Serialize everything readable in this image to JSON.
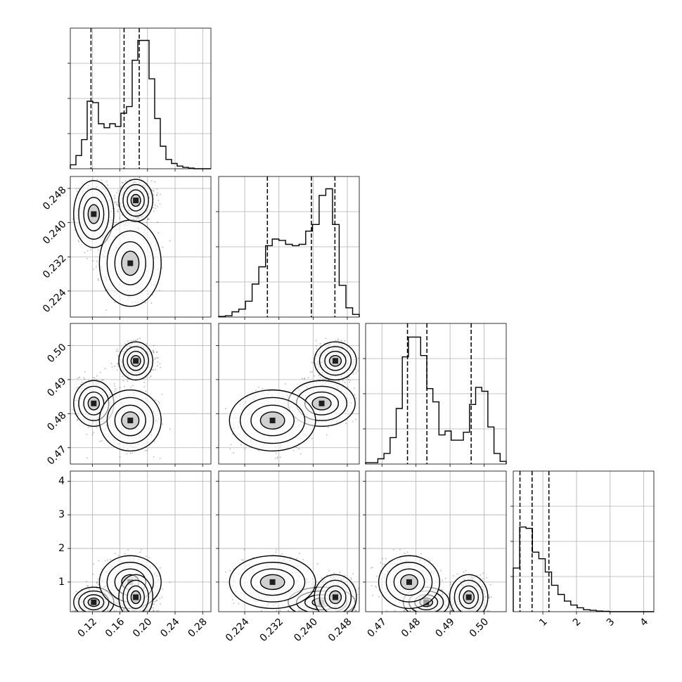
{
  "chart_data": {
    "type": "corner",
    "grid": true,
    "parameters": [
      {
        "ticks": [
          "0.12",
          "0.16",
          "0.20",
          "0.24",
          "0.28"
        ],
        "tick_values": [
          0.12,
          0.16,
          0.2,
          0.24,
          0.28
        ],
        "range": [
          0.088,
          0.292
        ],
        "quantiles": [
          0.118,
          0.166,
          0.188
        ],
        "histogram": [
          0.03,
          0.1,
          0.22,
          0.51,
          0.5,
          0.34,
          0.31,
          0.34,
          0.32,
          0.42,
          0.47,
          0.82,
          0.97,
          0.97,
          0.68,
          0.38,
          0.17,
          0.07,
          0.04,
          0.02,
          0.01,
          0.005,
          0.0,
          0.0,
          0.0
        ]
      },
      {
        "ticks": [
          "0.224",
          "0.232",
          "0.240",
          "0.248"
        ],
        "tick_values": [
          0.224,
          0.232,
          0.24,
          0.248
        ],
        "range": [
          0.2179,
          0.2508
        ],
        "quantiles": [
          0.2293,
          0.2396,
          0.2451
        ],
        "histogram": [
          0.005,
          0.01,
          0.04,
          0.06,
          0.12,
          0.25,
          0.38,
          0.54,
          0.59,
          0.58,
          0.55,
          0.54,
          0.55,
          0.65,
          0.7,
          0.92,
          0.97,
          0.7,
          0.24,
          0.07,
          0.02
        ]
      },
      {
        "ticks": [
          "0.47",
          "0.48",
          "0.49",
          "0.50"
        ],
        "tick_values": [
          0.47,
          0.48,
          0.49,
          0.5
        ],
        "range": [
          0.4652,
          0.5065
        ],
        "quantiles": [
          0.4775,
          0.4832,
          0.4962
        ],
        "histogram": [
          0.01,
          0.01,
          0.04,
          0.08,
          0.2,
          0.42,
          0.81,
          0.96,
          0.96,
          0.82,
          0.57,
          0.47,
          0.22,
          0.25,
          0.18,
          0.18,
          0.24,
          0.45,
          0.58,
          0.55,
          0.28,
          0.08,
          0.02
        ]
      },
      {
        "ticks": [
          "1",
          "2",
          "3",
          "4"
        ],
        "tick_values": [
          1,
          2,
          3,
          4
        ],
        "range": [
          0.12,
          4.3
        ],
        "quantiles": [
          0.32,
          0.68,
          1.18
        ],
        "histogram": [
          0.33,
          0.64,
          0.63,
          0.45,
          0.4,
          0.3,
          0.2,
          0.13,
          0.08,
          0.05,
          0.03,
          0.015,
          0.01,
          0.005,
          0.003,
          0.0,
          0.0,
          0.0,
          0.0,
          0.0,
          0.0,
          0.0
        ]
      }
    ],
    "joint_y_ticks": [
      [
        "0.224",
        "0.232",
        "0.240",
        "0.248"
      ],
      [
        "0.47",
        "0.48",
        "0.49",
        "0.50"
      ],
      [
        "1",
        "2",
        "3",
        "4"
      ]
    ],
    "joint_y_ticks_4": [
      "1",
      "2",
      "3",
      "4"
    ],
    "contour_levels": 4
  }
}
